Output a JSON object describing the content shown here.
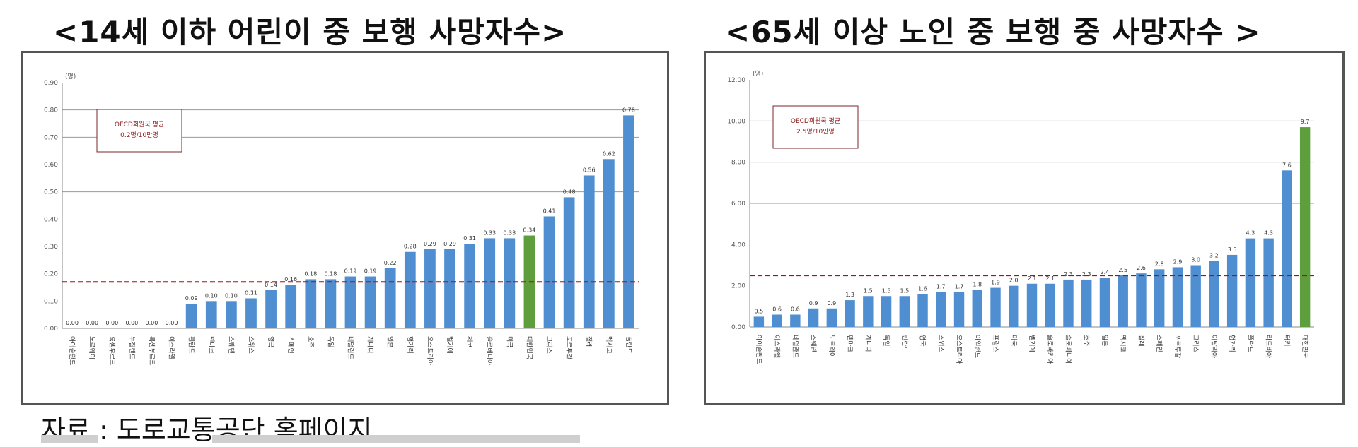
{
  "titles": {
    "left": "<14세 이하 어린이 중 보행 사망자수>",
    "right": "<65세 이상 노인 중 보행 중 사망자수 >"
  },
  "source": "자료 : 도로교통공단 홈페이지",
  "colors": {
    "bar": "#4f8fd1",
    "highlight": "#5f9e3c",
    "avg_line": "#a31515",
    "grid": "#9a9a9a"
  },
  "chart_data": [
    {
      "type": "bar",
      "unit": "(명)",
      "avg_label": [
        "OECD회원국 평균",
        "0.2명/10만명"
      ],
      "avg_value": 0.17,
      "ylim": [
        0,
        0.9
      ],
      "yticks": [
        "0.00",
        "0.10",
        "0.20",
        "0.30",
        "0.40",
        "0.50",
        "0.60",
        "0.70",
        "0.80",
        "0.90"
      ],
      "grid_rows": [
        5,
        7,
        8
      ],
      "highlight_index": 23,
      "categories": [
        "아이슬란드",
        "노르웨이",
        "룩셈부르크",
        "뉴질랜드",
        "룩셈부르크",
        "이스라엘",
        "핀란드",
        "덴마크",
        "스웨덴",
        "스위스",
        "영국",
        "스페인",
        "호주",
        "독일",
        "네덜란드",
        "캐나다",
        "일본",
        "헝가리",
        "오스트리아",
        "벨기에",
        "체코",
        "슬로베니아",
        "미국",
        "대한민국",
        "그리스",
        "포르투갈",
        "칠레",
        "멕시코",
        "폴란드"
      ],
      "values": [
        0.0,
        0.0,
        0.0,
        0.0,
        0.0,
        0.0,
        0.09,
        0.1,
        0.1,
        0.11,
        0.14,
        0.16,
        0.18,
        0.18,
        0.19,
        0.19,
        0.22,
        0.28,
        0.29,
        0.29,
        0.31,
        0.33,
        0.33,
        0.34,
        0.41,
        0.48,
        0.56,
        0.62,
        0.78
      ],
      "labels": [
        "0.00",
        "0.00",
        "0.00",
        "0.00",
        "0.00",
        "0.00",
        "0.09",
        "0.10",
        "0.10",
        "0.11",
        "0.14",
        "0.16",
        "0.18",
        "0.18",
        "0.19",
        "0.19",
        "0.22",
        "0.28",
        "0.29",
        "0.29",
        "0.31",
        "0.33",
        "0.33",
        "0.34",
        "0.41",
        "0.48",
        "0.56",
        "0.62",
        "0.78"
      ]
    },
    {
      "type": "bar",
      "unit": "(명)",
      "avg_label": [
        "OECD회원국 평균",
        "2.5명/10만명"
      ],
      "avg_value": 2.5,
      "ylim": [
        0,
        12
      ],
      "yticks": [
        "0.00",
        "2.00",
        "4.00",
        "6.00",
        "8.00",
        "10.00",
        "12.00"
      ],
      "grid_rows": [
        3,
        4,
        5
      ],
      "highlight_index": 30,
      "categories": [
        "아이슬란드",
        "이스라엘",
        "네덜란드",
        "스웨덴",
        "노르웨이",
        "덴마크",
        "캐나다",
        "독일",
        "핀란드",
        "영국",
        "스위스",
        "오스트리아",
        "아일랜드",
        "프랑스",
        "미국",
        "벨기에",
        "슬로바키아",
        "슬로베니아",
        "호주",
        "일본",
        "멕시코",
        "칠레",
        "스페인",
        "포르투갈",
        "그리스",
        "이탈리아",
        "헝가리",
        "폴란드",
        "라트비아",
        "터키",
        "대한민국"
      ],
      "values": [
        0.5,
        0.6,
        0.6,
        0.9,
        0.9,
        1.3,
        1.5,
        1.5,
        1.5,
        1.6,
        1.7,
        1.7,
        1.8,
        1.9,
        2.0,
        2.1,
        2.1,
        2.3,
        2.3,
        2.4,
        2.5,
        2.6,
        2.8,
        2.9,
        3.0,
        3.2,
        3.5,
        4.3,
        4.3,
        7.6,
        9.7
      ],
      "labels": [
        "0.5",
        "0.6",
        "0.6",
        "0.9",
        "0.9",
        "1.3",
        "1.5",
        "1.5",
        "1.5",
        "1.6",
        "1.7",
        "1.7",
        "1.8",
        "1.9",
        "2.0",
        "2.1",
        "2.1",
        "2.3",
        "2.3",
        "2.4",
        "2.5",
        "2.6",
        "2.8",
        "2.9",
        "3.0",
        "3.2",
        "3.5",
        "4.3",
        "4.3",
        "7.6",
        "9.7"
      ]
    }
  ]
}
